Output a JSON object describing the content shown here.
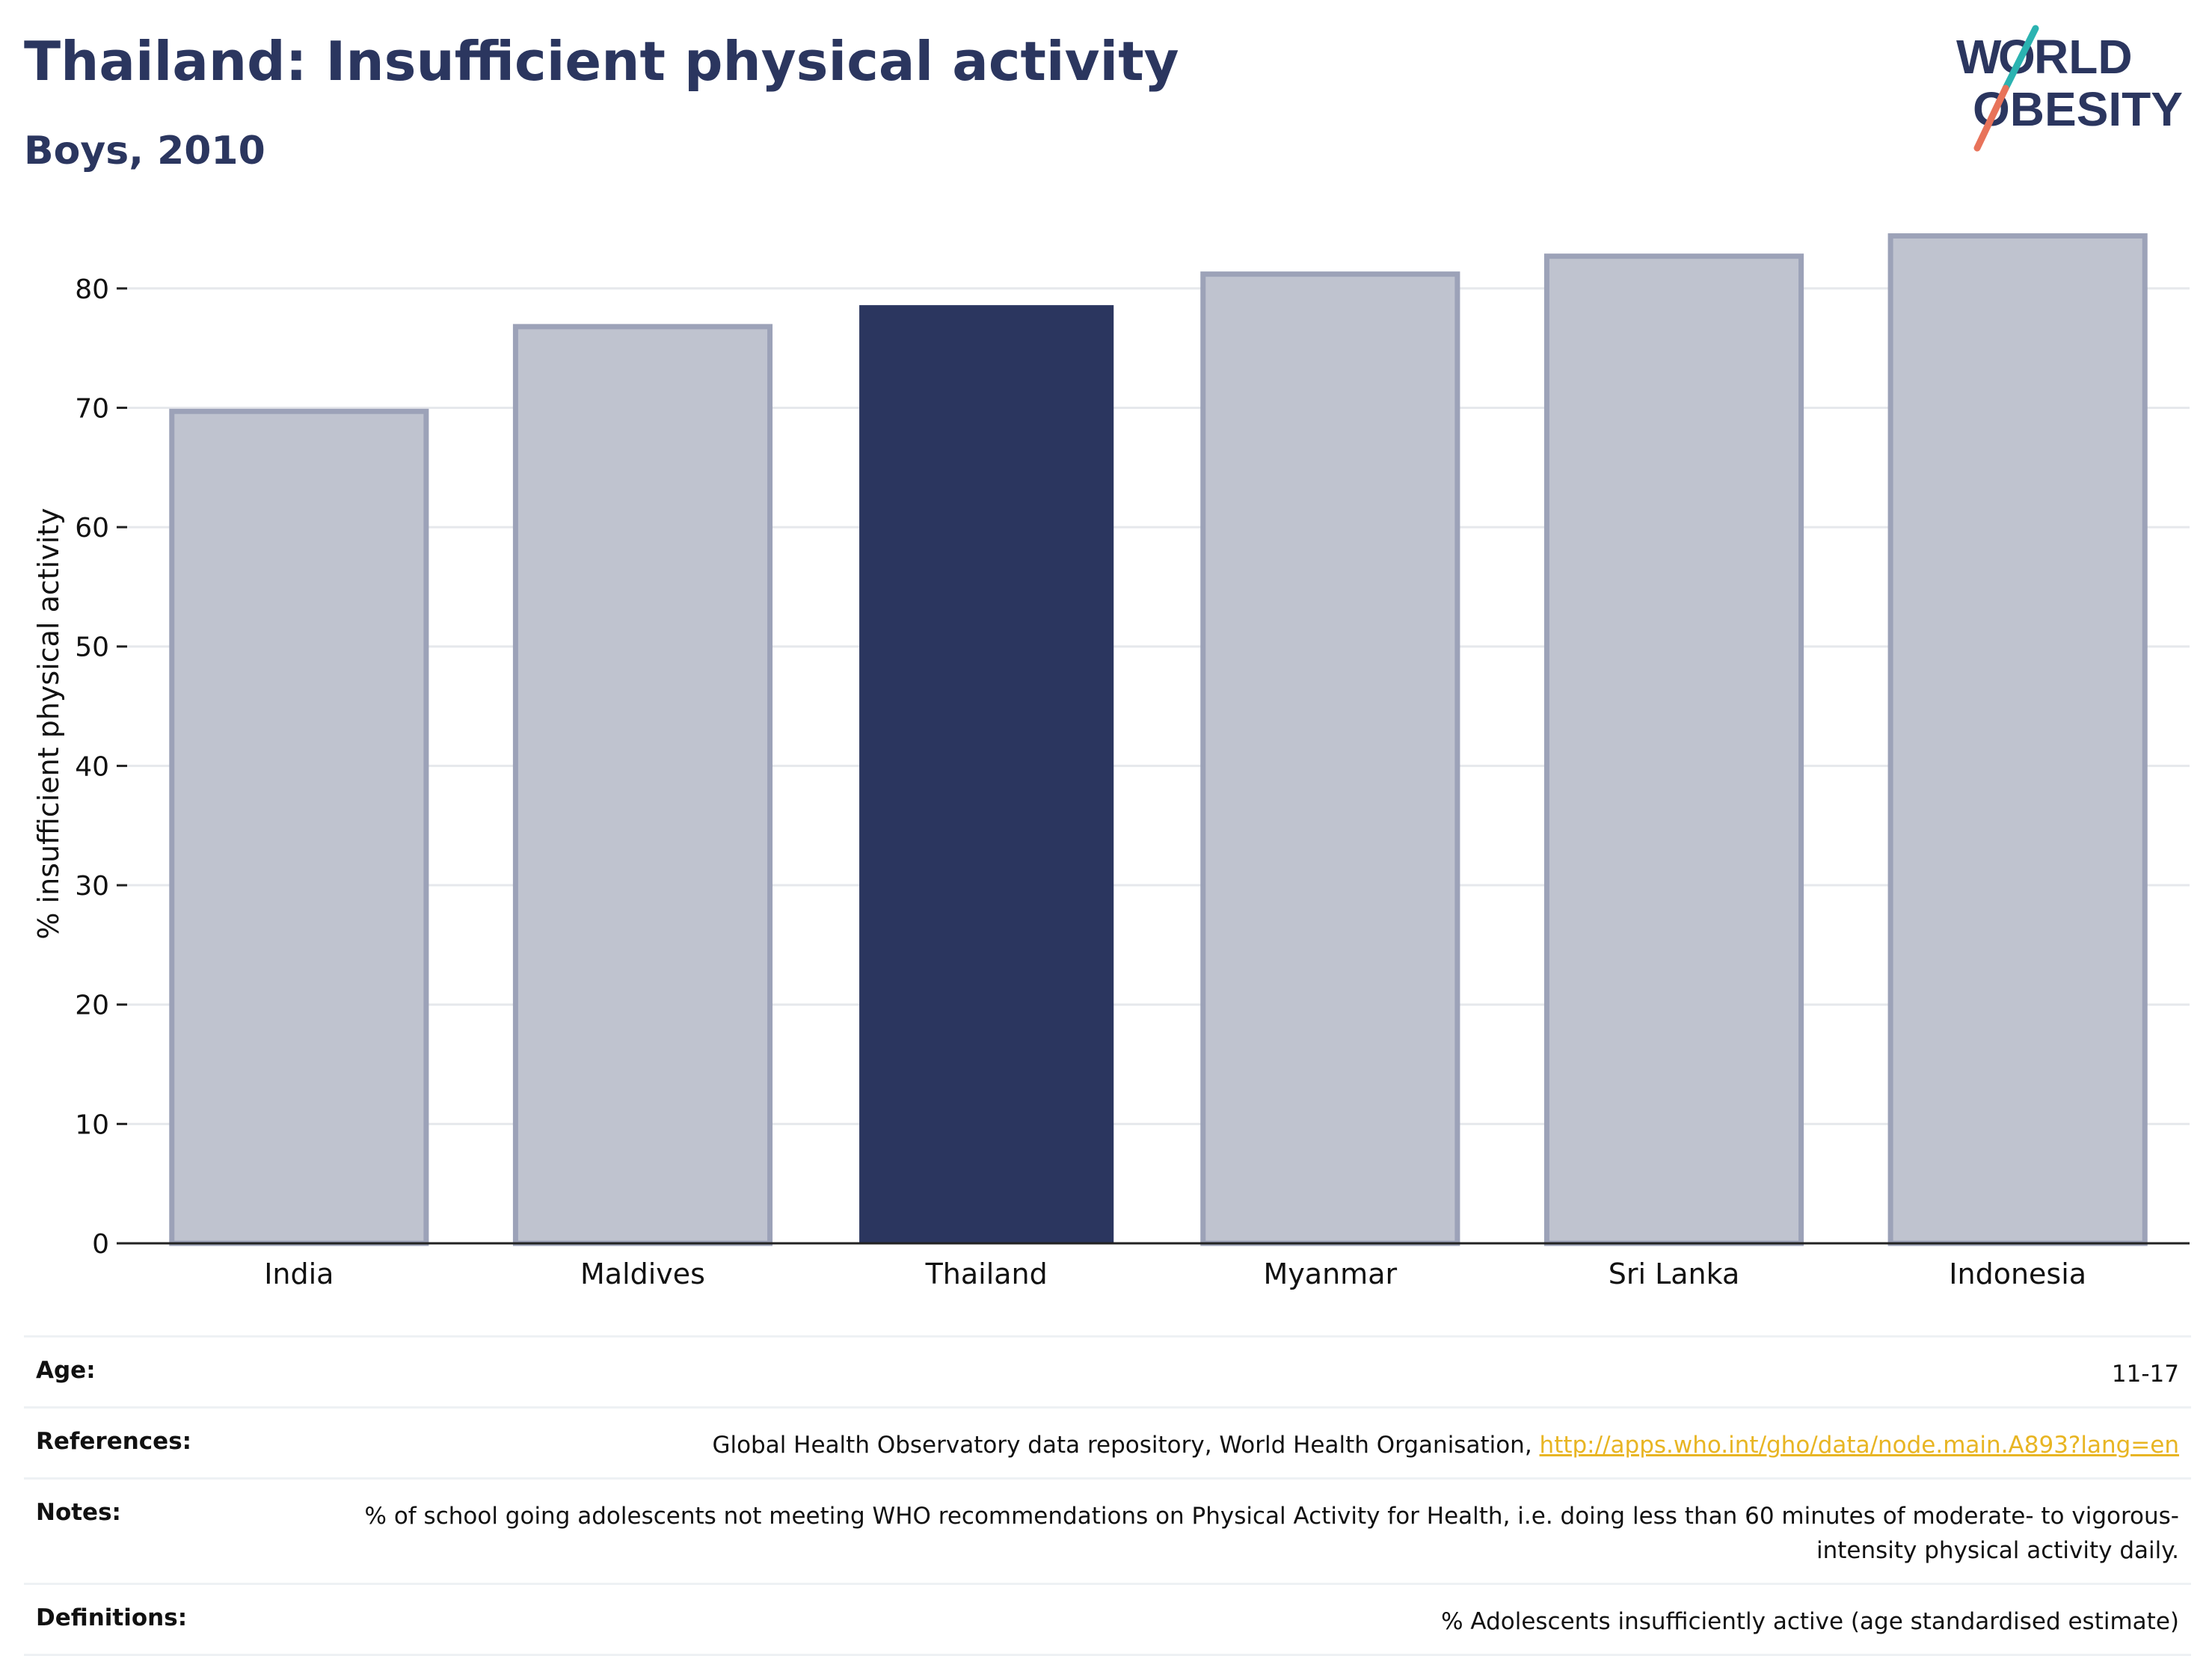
{
  "title": "Thailand: Insufficient physical activity",
  "subtitle": "Boys, 2010",
  "logo": {
    "line1": "WORLD",
    "line2": "OBESITY",
    "colors": {
      "text": "#2b365f",
      "slash_top": "#2bb3b1",
      "slash_bottom": "#e8735a"
    }
  },
  "chart_data": {
    "type": "bar",
    "categories": [
      "India",
      "Maldives",
      "Thailand",
      "Myanmar",
      "Sri Lanka",
      "Indonesia"
    ],
    "values": [
      69.7,
      76.8,
      78.6,
      81.2,
      82.7,
      84.4
    ],
    "highlight": "Thailand",
    "ylabel": "% insufficient physical activity",
    "xlabel": "",
    "ylim": [
      0,
      86
    ],
    "yticks": [
      0,
      10,
      20,
      30,
      40,
      50,
      60,
      70,
      80
    ],
    "grid": true,
    "colors": {
      "highlight": "#2b365f",
      "other_fill": "#bfc3cf",
      "other_stroke": "#9ca2b8",
      "grid": "#e6e8ec",
      "axis": "#222222"
    }
  },
  "meta": [
    {
      "key": "Age:",
      "value": "11-17"
    },
    {
      "key": "References:",
      "value": "Global Health Observatory data repository, World Health Organisation, ",
      "link": "http://apps.who.int/gho/data/node.main.A893?lang=en"
    },
    {
      "key": "Notes:",
      "value": "% of school going adolescents not meeting WHO recommendations on Physical Activity for Health, i.e. doing less than 60 minutes of moderate- to vigorous-intensity physical activity daily."
    },
    {
      "key": "Definitions:",
      "value": "% Adolescents insufficiently active (age standardised estimate)"
    }
  ]
}
